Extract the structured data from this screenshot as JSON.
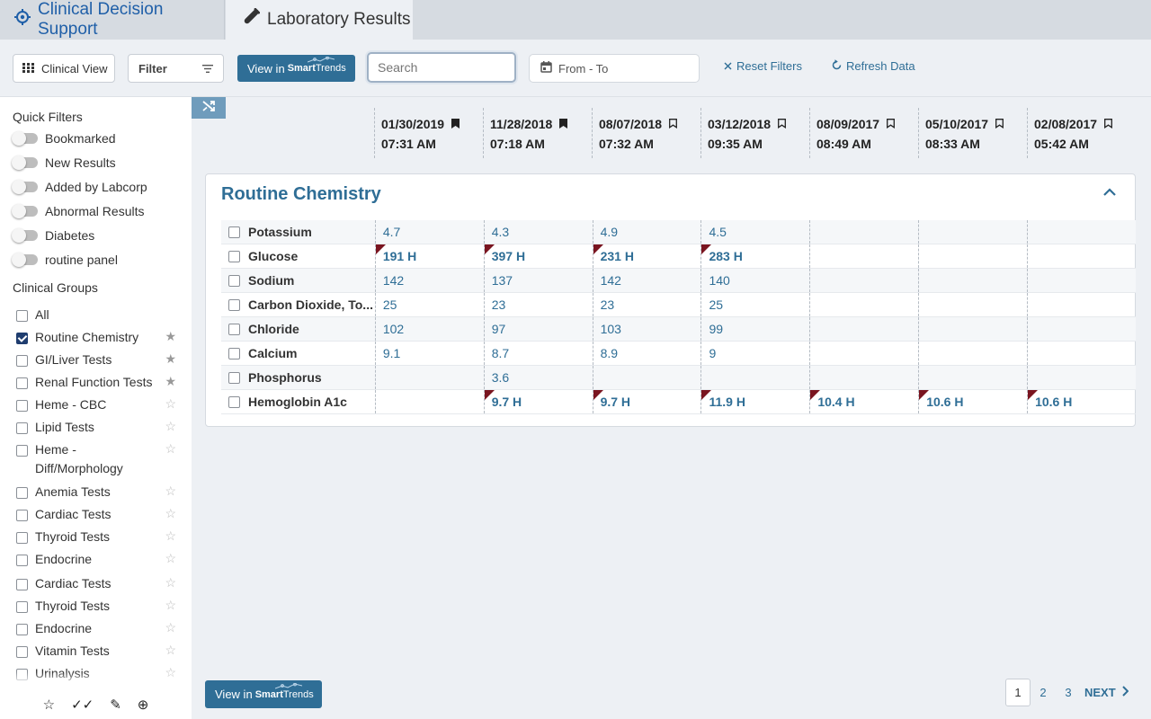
{
  "tabs": {
    "clinical_decision_support": "Clinical Decision Support",
    "laboratory_results": "Laboratory Results"
  },
  "toolbar": {
    "clinical_view": "Clinical View",
    "filter": "Filter",
    "smart_view_prefix": "View in",
    "smart_brand_bold": "Smart",
    "smart_brand_rest": "Trends",
    "search_placeholder": "Search",
    "date_range_placeholder": "From - To",
    "reset_filters": "Reset Filters",
    "refresh_data": "Refresh Data"
  },
  "sidebar": {
    "quick_filters_title": "Quick Filters",
    "quick_filters": [
      "Bookmarked",
      "New Results",
      "Added by Labcorp",
      "Abnormal Results",
      "Diabetes",
      "routine panel"
    ],
    "clinical_groups_title": "Clinical Groups",
    "groups": [
      {
        "label": "All",
        "checked": false,
        "star": "none"
      },
      {
        "label": "Routine Chemistry",
        "checked": true,
        "star": "filled"
      },
      {
        "label": "GI/Liver Tests",
        "checked": false,
        "star": "filled"
      },
      {
        "label": "Renal Function Tests",
        "checked": false,
        "star": "filled"
      },
      {
        "label": "Heme - CBC",
        "checked": false,
        "star": "outline"
      },
      {
        "label": "Lipid Tests",
        "checked": false,
        "star": "outline"
      },
      {
        "label": "Heme - Diff/Morphology",
        "checked": false,
        "star": "outline"
      },
      {
        "label": "Anemia Tests",
        "checked": false,
        "star": "outline"
      },
      {
        "label": "Cardiac Tests",
        "checked": false,
        "star": "outline"
      },
      {
        "label": "Thyroid Tests",
        "checked": false,
        "star": "outline"
      },
      {
        "label": "Endocrine",
        "checked": false,
        "star": "outline"
      },
      {
        "label": "Cardiac Tests",
        "checked": false,
        "star": "outline"
      },
      {
        "label": "Thyroid Tests",
        "checked": false,
        "star": "outline"
      },
      {
        "label": "Endocrine",
        "checked": false,
        "star": "outline"
      },
      {
        "label": "Vitamin Tests",
        "checked": false,
        "star": "outline"
      },
      {
        "label": "Urinalysis",
        "checked": false,
        "star": "outline"
      }
    ],
    "footer_icons": [
      "star-outline-icon",
      "double-check-icon",
      "pencil-icon",
      "add-circle-icon"
    ]
  },
  "dates": [
    {
      "date": "01/30/2019",
      "time": "07:31 AM",
      "bookmarked": true
    },
    {
      "date": "11/28/2018",
      "time": "07:18 AM",
      "bookmarked": true
    },
    {
      "date": "08/07/2018",
      "time": "07:32 AM",
      "bookmarked": false
    },
    {
      "date": "03/12/2018",
      "time": "09:35 AM",
      "bookmarked": false
    },
    {
      "date": "08/09/2017",
      "time": "08:49 AM",
      "bookmarked": false
    },
    {
      "date": "05/10/2017",
      "time": "08:33 AM",
      "bookmarked": false
    },
    {
      "date": "02/08/2017",
      "time": "05:42 AM",
      "bookmarked": false
    }
  ],
  "panel": {
    "title": "Routine Chemistry",
    "tests": [
      {
        "name": "Potassium",
        "values": [
          "4.7",
          "4.3",
          "4.9",
          "4.5",
          "",
          "",
          ""
        ],
        "abnormal": [
          false,
          false,
          false,
          false,
          false,
          false,
          false
        ]
      },
      {
        "name": "Glucose",
        "values": [
          "191 H",
          "397 H",
          "231 H",
          "283 H",
          "",
          "",
          ""
        ],
        "abnormal": [
          true,
          true,
          true,
          true,
          false,
          false,
          false
        ]
      },
      {
        "name": "Sodium",
        "values": [
          "142",
          "137",
          "142",
          "140",
          "",
          "",
          ""
        ],
        "abnormal": [
          false,
          false,
          false,
          false,
          false,
          false,
          false
        ]
      },
      {
        "name": "Carbon Dioxide, To...",
        "values": [
          "25",
          "23",
          "23",
          "25",
          "",
          "",
          ""
        ],
        "abnormal": [
          false,
          false,
          false,
          false,
          false,
          false,
          false
        ]
      },
      {
        "name": "Chloride",
        "values": [
          "102",
          "97",
          "103",
          "99",
          "",
          "",
          ""
        ],
        "abnormal": [
          false,
          false,
          false,
          false,
          false,
          false,
          false
        ]
      },
      {
        "name": "Calcium",
        "values": [
          "9.1",
          "8.7",
          "8.9",
          "9",
          "",
          "",
          ""
        ],
        "abnormal": [
          false,
          false,
          false,
          false,
          false,
          false,
          false
        ]
      },
      {
        "name": "Phosphorus",
        "values": [
          "",
          "3.6",
          "",
          "",
          "",
          "",
          ""
        ],
        "abnormal": [
          false,
          false,
          false,
          false,
          false,
          false,
          false
        ]
      },
      {
        "name": "Hemoglobin A1c",
        "values": [
          "",
          "9.7 H",
          "9.7 H",
          "11.9 H",
          "10.4 H",
          "10.6 H",
          "10.6 H"
        ],
        "abnormal": [
          false,
          true,
          true,
          true,
          true,
          true,
          true
        ]
      }
    ]
  },
  "pagination": {
    "pages": [
      "1",
      "2",
      "3"
    ],
    "current": "1",
    "next": "NEXT"
  },
  "colors": {
    "accent": "#2f6e96",
    "abnormal_flag": "#7a1520",
    "tab_active_text": "#1f5fa8"
  }
}
